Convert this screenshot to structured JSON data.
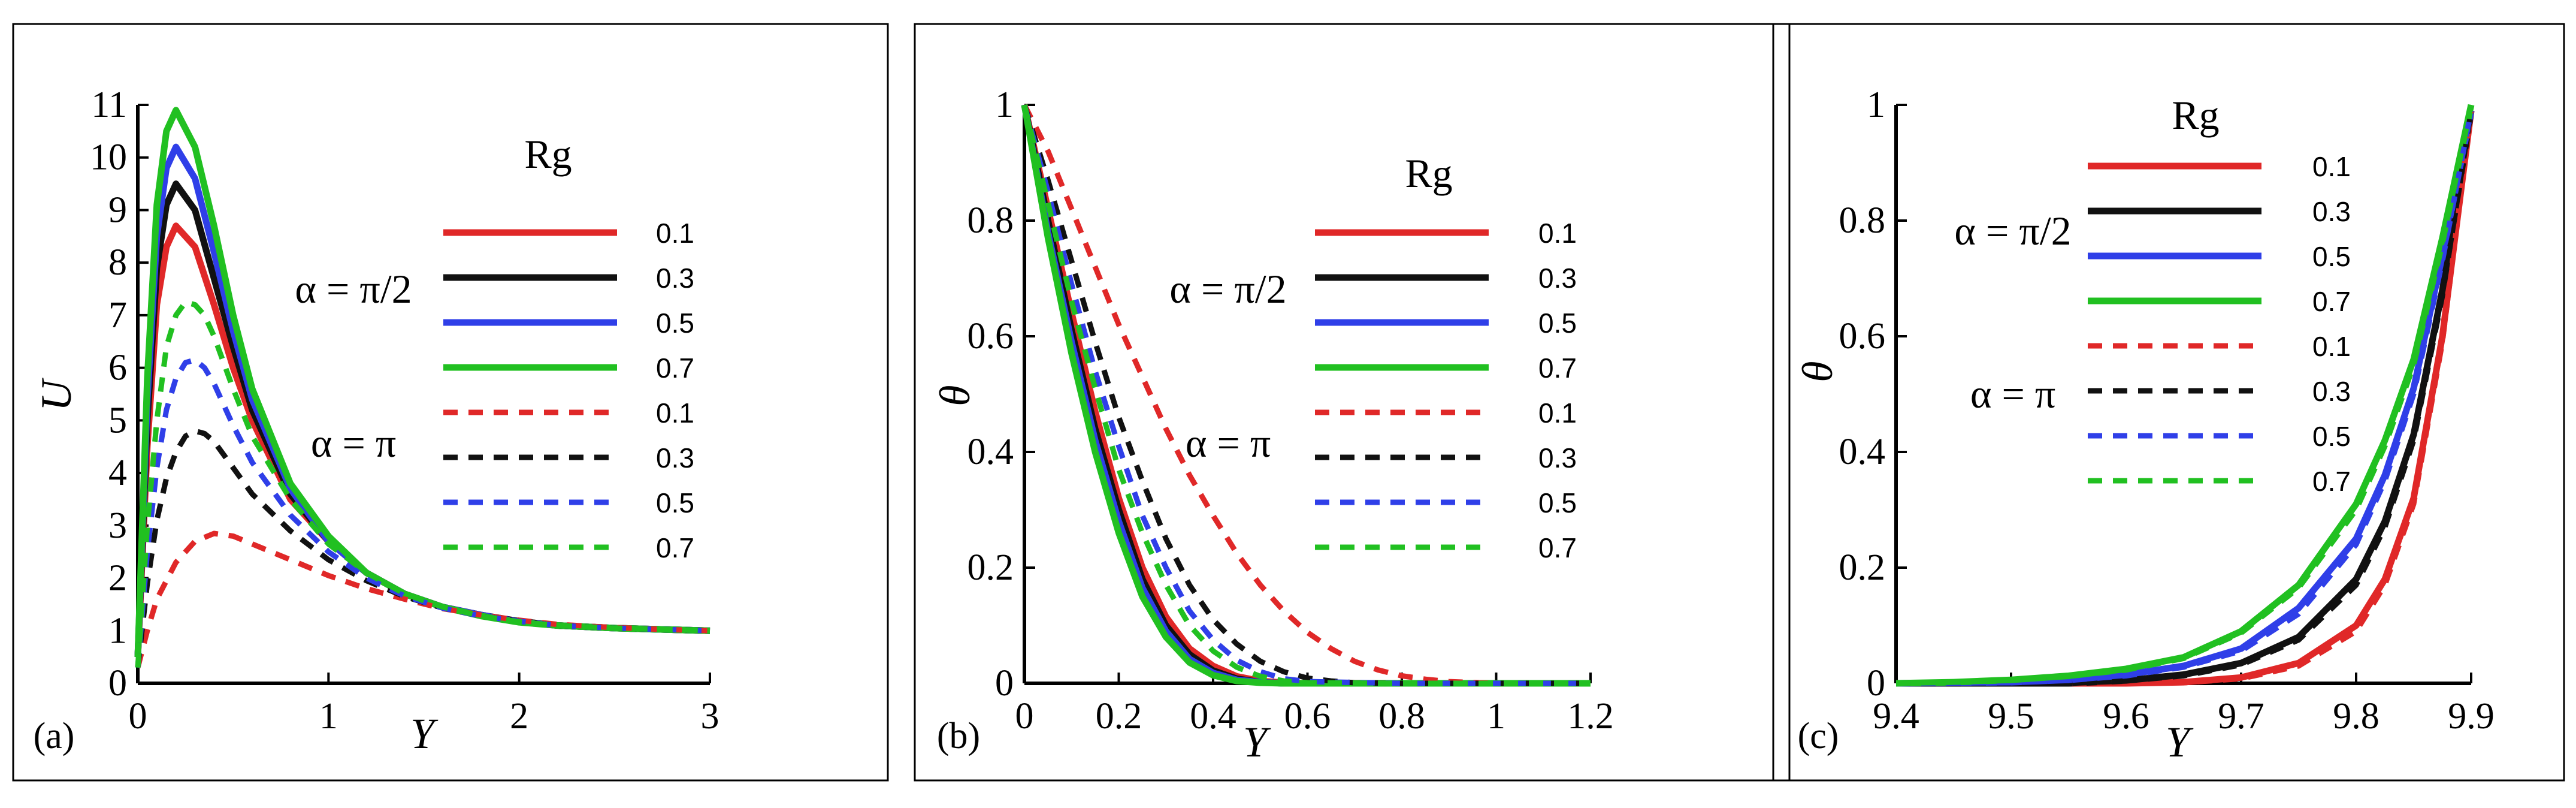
{
  "colors": {
    "rg_0.1": "#e02828",
    "rg_0.3": "#111111",
    "rg_0.5": "#2f3fe8",
    "rg_0.7": "#21c021"
  },
  "chart_data": [
    {
      "type": "line",
      "panel_label": "(a)",
      "xlabel": "Y",
      "ylabel": "U",
      "xlim": [
        0,
        3
      ],
      "ylim": [
        0,
        11
      ],
      "xticks": [
        0,
        1,
        2,
        3
      ],
      "yticks": [
        0,
        1,
        2,
        3,
        4,
        5,
        6,
        7,
        8,
        9,
        10,
        11
      ],
      "legend_title": "Rg",
      "legend_groups": [
        "α = π/2",
        "α = π"
      ],
      "series": [
        {
          "name": "0.1",
          "group": "α = π/2",
          "rg": "0.1",
          "dashed": false,
          "x": [
            0,
            0.05,
            0.1,
            0.15,
            0.2,
            0.3,
            0.4,
            0.5,
            0.6,
            0.8,
            1.0,
            1.2,
            1.4,
            1.6,
            1.8,
            2.0,
            2.2,
            2.5,
            2.8,
            3.0
          ],
          "y": [
            0.5,
            4.5,
            7.2,
            8.3,
            8.7,
            8.3,
            7.2,
            6.0,
            5.0,
            3.5,
            2.7,
            2.1,
            1.7,
            1.45,
            1.3,
            1.18,
            1.1,
            1.05,
            1.02,
            1.0
          ]
        },
        {
          "name": "0.3",
          "group": "α = π/2",
          "rg": "0.3",
          "dashed": false,
          "x": [
            0,
            0.05,
            0.1,
            0.15,
            0.2,
            0.3,
            0.4,
            0.5,
            0.6,
            0.8,
            1.0,
            1.2,
            1.4,
            1.6,
            1.8,
            2.0,
            2.2,
            2.5,
            2.8,
            3.0
          ],
          "y": [
            0.5,
            5.0,
            7.9,
            9.1,
            9.5,
            9.0,
            7.7,
            6.4,
            5.2,
            3.6,
            2.7,
            2.1,
            1.7,
            1.45,
            1.3,
            1.18,
            1.1,
            1.05,
            1.02,
            1.0
          ]
        },
        {
          "name": "0.5",
          "group": "α = π/2",
          "rg": "0.5",
          "dashed": false,
          "x": [
            0,
            0.05,
            0.1,
            0.15,
            0.2,
            0.3,
            0.4,
            0.5,
            0.6,
            0.8,
            1.0,
            1.2,
            1.4,
            1.6,
            1.8,
            2.0,
            2.2,
            2.5,
            2.8,
            3.0
          ],
          "y": [
            0.5,
            5.4,
            8.5,
            9.8,
            10.2,
            9.6,
            8.2,
            6.7,
            5.4,
            3.7,
            2.7,
            2.1,
            1.7,
            1.45,
            1.3,
            1.17,
            1.1,
            1.05,
            1.02,
            1.0
          ]
        },
        {
          "name": "0.7",
          "group": "α = π/2",
          "rg": "0.7",
          "dashed": false,
          "x": [
            0,
            0.05,
            0.1,
            0.15,
            0.2,
            0.3,
            0.4,
            0.5,
            0.6,
            0.8,
            1.0,
            1.2,
            1.4,
            1.6,
            1.8,
            2.0,
            2.2,
            2.5,
            2.8,
            3.0
          ],
          "y": [
            0.5,
            5.8,
            9.1,
            10.5,
            10.9,
            10.2,
            8.7,
            7.0,
            5.6,
            3.8,
            2.8,
            2.1,
            1.7,
            1.45,
            1.28,
            1.16,
            1.1,
            1.05,
            1.02,
            1.0
          ]
        },
        {
          "name": "0.1",
          "group": "α = π",
          "rg": "0.1",
          "dashed": true,
          "x": [
            0,
            0.05,
            0.1,
            0.2,
            0.3,
            0.4,
            0.5,
            0.6,
            0.8,
            1.0,
            1.2,
            1.4,
            1.6,
            1.8,
            2.0,
            2.2,
            2.5,
            2.8,
            3.0
          ],
          "y": [
            0.3,
            1.0,
            1.6,
            2.3,
            2.7,
            2.85,
            2.8,
            2.65,
            2.35,
            2.05,
            1.8,
            1.6,
            1.42,
            1.3,
            1.2,
            1.12,
            1.06,
            1.02,
            1.0
          ]
        },
        {
          "name": "0.3",
          "group": "α = π",
          "rg": "0.3",
          "dashed": true,
          "x": [
            0,
            0.05,
            0.1,
            0.15,
            0.2,
            0.25,
            0.3,
            0.35,
            0.4,
            0.5,
            0.6,
            0.8,
            1.0,
            1.2,
            1.4,
            1.6,
            1.8,
            2.0,
            2.2,
            2.5,
            2.8,
            3.0
          ],
          "y": [
            0.3,
            1.9,
            3.1,
            3.9,
            4.4,
            4.7,
            4.8,
            4.75,
            4.6,
            4.1,
            3.6,
            2.9,
            2.35,
            1.95,
            1.65,
            1.43,
            1.28,
            1.18,
            1.1,
            1.05,
            1.02,
            1.0
          ]
        },
        {
          "name": "0.5",
          "group": "α = π",
          "rg": "0.5",
          "dashed": true,
          "x": [
            0,
            0.05,
            0.1,
            0.15,
            0.2,
            0.25,
            0.3,
            0.35,
            0.4,
            0.5,
            0.6,
            0.8,
            1.0,
            1.2,
            1.4,
            1.6,
            1.8,
            2.0,
            2.2,
            2.5,
            2.8,
            3.0
          ],
          "y": [
            0.3,
            2.5,
            4.1,
            5.2,
            5.8,
            6.1,
            6.15,
            6.0,
            5.7,
            4.9,
            4.2,
            3.2,
            2.5,
            2.0,
            1.66,
            1.43,
            1.28,
            1.18,
            1.1,
            1.05,
            1.02,
            1.0
          ]
        },
        {
          "name": "0.7",
          "group": "α = π",
          "rg": "0.7",
          "dashed": true,
          "x": [
            0,
            0.05,
            0.1,
            0.15,
            0.2,
            0.25,
            0.3,
            0.35,
            0.4,
            0.5,
            0.6,
            0.8,
            1.0,
            1.2,
            1.4,
            1.6,
            1.8,
            2.0,
            2.2,
            2.5,
            2.8,
            3.0
          ],
          "y": [
            0.3,
            3.0,
            5.0,
            6.4,
            7.0,
            7.25,
            7.2,
            7.0,
            6.6,
            5.6,
            4.7,
            3.5,
            2.65,
            2.1,
            1.7,
            1.45,
            1.28,
            1.17,
            1.1,
            1.05,
            1.02,
            1.0
          ]
        }
      ]
    },
    {
      "type": "line",
      "panel_label": "(b)",
      "xlabel": "Y",
      "ylabel": "θ",
      "xlim": [
        0,
        1.2
      ],
      "ylim": [
        0,
        1
      ],
      "xticks": [
        0,
        0.2,
        0.4,
        0.6,
        0.8,
        1,
        1.2
      ],
      "yticks": [
        0,
        0.2,
        0.4,
        0.6,
        0.8,
        1
      ],
      "legend_title": "Rg",
      "legend_groups": [
        "α = π/2",
        "α = π"
      ],
      "series": [
        {
          "name": "0.1",
          "group": "α = π/2",
          "rg": "0.1",
          "dashed": false,
          "x": [
            0,
            0.05,
            0.1,
            0.15,
            0.2,
            0.25,
            0.3,
            0.35,
            0.4,
            0.45,
            0.5,
            0.55,
            0.6,
            0.8,
            1.2
          ],
          "y": [
            1.0,
            0.82,
            0.64,
            0.47,
            0.32,
            0.2,
            0.115,
            0.06,
            0.03,
            0.012,
            0.004,
            0.001,
            0,
            0,
            0
          ]
        },
        {
          "name": "0.3",
          "group": "α = π/2",
          "rg": "0.3",
          "dashed": false,
          "x": [
            0,
            0.05,
            0.1,
            0.15,
            0.2,
            0.25,
            0.3,
            0.35,
            0.4,
            0.45,
            0.5,
            0.55,
            0.6,
            0.8,
            1.2
          ],
          "y": [
            1.0,
            0.8,
            0.61,
            0.44,
            0.3,
            0.18,
            0.1,
            0.05,
            0.022,
            0.008,
            0.002,
            0,
            0,
            0,
            0
          ]
        },
        {
          "name": "0.5",
          "group": "α = π/2",
          "rg": "0.5",
          "dashed": false,
          "x": [
            0,
            0.05,
            0.1,
            0.15,
            0.2,
            0.25,
            0.3,
            0.35,
            0.4,
            0.45,
            0.5,
            0.55,
            0.6,
            0.8,
            1.2
          ],
          "y": [
            1.0,
            0.78,
            0.59,
            0.42,
            0.28,
            0.165,
            0.09,
            0.042,
            0.018,
            0.006,
            0.002,
            0,
            0,
            0,
            0
          ]
        },
        {
          "name": "0.7",
          "group": "α = π/2",
          "rg": "0.7",
          "dashed": false,
          "x": [
            0,
            0.05,
            0.1,
            0.15,
            0.2,
            0.25,
            0.3,
            0.35,
            0.4,
            0.45,
            0.5,
            0.55,
            0.6,
            0.8,
            1.2
          ],
          "y": [
            1.0,
            0.77,
            0.57,
            0.4,
            0.26,
            0.15,
            0.08,
            0.036,
            0.014,
            0.004,
            0.001,
            0,
            0,
            0,
            0
          ]
        },
        {
          "name": "0.1",
          "group": "α = π",
          "rg": "0.1",
          "dashed": true,
          "x": [
            0,
            0.05,
            0.1,
            0.15,
            0.2,
            0.25,
            0.3,
            0.35,
            0.4,
            0.45,
            0.5,
            0.55,
            0.6,
            0.65,
            0.7,
            0.75,
            0.8,
            0.85,
            0.9,
            1.0,
            1.2
          ],
          "y": [
            1.0,
            0.92,
            0.82,
            0.72,
            0.62,
            0.53,
            0.44,
            0.36,
            0.29,
            0.225,
            0.17,
            0.125,
            0.088,
            0.06,
            0.038,
            0.023,
            0.013,
            0.007,
            0.003,
            0,
            0
          ]
        },
        {
          "name": "0.3",
          "group": "α = π",
          "rg": "0.3",
          "dashed": true,
          "x": [
            0,
            0.05,
            0.1,
            0.15,
            0.2,
            0.25,
            0.3,
            0.35,
            0.4,
            0.45,
            0.5,
            0.55,
            0.6,
            0.65,
            0.7,
            0.8,
            1.2
          ],
          "y": [
            1.0,
            0.87,
            0.73,
            0.59,
            0.46,
            0.35,
            0.25,
            0.17,
            0.11,
            0.068,
            0.038,
            0.02,
            0.009,
            0.004,
            0.001,
            0,
            0
          ]
        },
        {
          "name": "0.5",
          "group": "α = π",
          "rg": "0.5",
          "dashed": true,
          "x": [
            0,
            0.05,
            0.1,
            0.15,
            0.2,
            0.25,
            0.3,
            0.35,
            0.4,
            0.45,
            0.5,
            0.55,
            0.6,
            0.8,
            1.2
          ],
          "y": [
            1.0,
            0.85,
            0.69,
            0.54,
            0.41,
            0.29,
            0.2,
            0.125,
            0.075,
            0.04,
            0.02,
            0.008,
            0.003,
            0,
            0
          ]
        },
        {
          "name": "0.7",
          "group": "α = π",
          "rg": "0.7",
          "dashed": true,
          "x": [
            0,
            0.05,
            0.1,
            0.15,
            0.2,
            0.25,
            0.3,
            0.35,
            0.4,
            0.45,
            0.5,
            0.55,
            0.6,
            0.8,
            1.2
          ],
          "y": [
            1.0,
            0.83,
            0.66,
            0.51,
            0.37,
            0.26,
            0.17,
            0.1,
            0.056,
            0.028,
            0.012,
            0.004,
            0.001,
            0,
            0
          ]
        }
      ]
    },
    {
      "type": "line",
      "panel_label": "(c)",
      "xlabel": "Y",
      "ylabel": "θ",
      "xlim": [
        9.4,
        9.9
      ],
      "ylim": [
        0,
        1
      ],
      "xticks": [
        9.4,
        9.5,
        9.6,
        9.7,
        9.8,
        9.9
      ],
      "yticks": [
        0,
        0.2,
        0.4,
        0.6,
        0.8,
        1
      ],
      "legend_title": "Rg",
      "legend_groups": [
        "α = π/2",
        "α = π"
      ],
      "series": [
        {
          "name": "0.1",
          "group": "α = π/2",
          "rg": "0.1",
          "dashed": false,
          "x": [
            9.4,
            9.6,
            9.65,
            9.7,
            9.75,
            9.8,
            9.825,
            9.85,
            9.875,
            9.9
          ],
          "y": [
            0,
            0,
            0.002,
            0.01,
            0.035,
            0.1,
            0.18,
            0.32,
            0.6,
            0.99
          ]
        },
        {
          "name": "0.3",
          "group": "α = π/2",
          "rg": "0.3",
          "dashed": false,
          "x": [
            9.4,
            9.55,
            9.6,
            9.65,
            9.7,
            9.75,
            9.8,
            9.825,
            9.85,
            9.875,
            9.9
          ],
          "y": [
            0,
            0,
            0.005,
            0.015,
            0.035,
            0.08,
            0.18,
            0.28,
            0.43,
            0.68,
            0.99
          ]
        },
        {
          "name": "0.5",
          "group": "α = π/2",
          "rg": "0.5",
          "dashed": false,
          "x": [
            9.4,
            9.5,
            9.55,
            9.6,
            9.65,
            9.7,
            9.75,
            9.8,
            9.825,
            9.85,
            9.875,
            9.9
          ],
          "y": [
            0,
            0.002,
            0.006,
            0.015,
            0.03,
            0.06,
            0.13,
            0.25,
            0.36,
            0.51,
            0.74,
            0.99
          ]
        },
        {
          "name": "0.7",
          "group": "α = π/2",
          "rg": "0.7",
          "dashed": false,
          "x": [
            9.4,
            9.45,
            9.5,
            9.55,
            9.6,
            9.65,
            9.7,
            9.75,
            9.8,
            9.825,
            9.85,
            9.875,
            9.9
          ],
          "y": [
            0,
            0.002,
            0.006,
            0.013,
            0.025,
            0.045,
            0.09,
            0.17,
            0.31,
            0.42,
            0.56,
            0.77,
            1.0
          ]
        },
        {
          "name": "0.1",
          "group": "α = π",
          "rg": "0.1",
          "dashed": true,
          "x": [
            9.4,
            9.6,
            9.65,
            9.7,
            9.75,
            9.8,
            9.825,
            9.85,
            9.875,
            9.9
          ],
          "y": [
            0,
            0,
            0.001,
            0.008,
            0.03,
            0.09,
            0.17,
            0.31,
            0.59,
            0.99
          ]
        },
        {
          "name": "0.3",
          "group": "α = π",
          "rg": "0.3",
          "dashed": true,
          "x": [
            9.4,
            9.55,
            9.6,
            9.65,
            9.7,
            9.75,
            9.8,
            9.825,
            9.85,
            9.875,
            9.9
          ],
          "y": [
            0,
            0,
            0.004,
            0.013,
            0.032,
            0.075,
            0.17,
            0.27,
            0.42,
            0.67,
            0.99
          ]
        },
        {
          "name": "0.5",
          "group": "α = π",
          "rg": "0.5",
          "dashed": true,
          "x": [
            9.4,
            9.5,
            9.55,
            9.6,
            9.65,
            9.7,
            9.75,
            9.8,
            9.825,
            9.85,
            9.875,
            9.9
          ],
          "y": [
            0,
            0.001,
            0.005,
            0.013,
            0.028,
            0.056,
            0.12,
            0.24,
            0.35,
            0.5,
            0.73,
            0.99
          ]
        },
        {
          "name": "0.7",
          "group": "α = π",
          "rg": "0.7",
          "dashed": true,
          "x": [
            9.4,
            9.45,
            9.5,
            9.55,
            9.6,
            9.65,
            9.7,
            9.75,
            9.8,
            9.825,
            9.85,
            9.875,
            9.9
          ],
          "y": [
            0,
            0.002,
            0.005,
            0.012,
            0.023,
            0.043,
            0.087,
            0.165,
            0.3,
            0.41,
            0.55,
            0.76,
            1.0
          ]
        }
      ]
    }
  ]
}
